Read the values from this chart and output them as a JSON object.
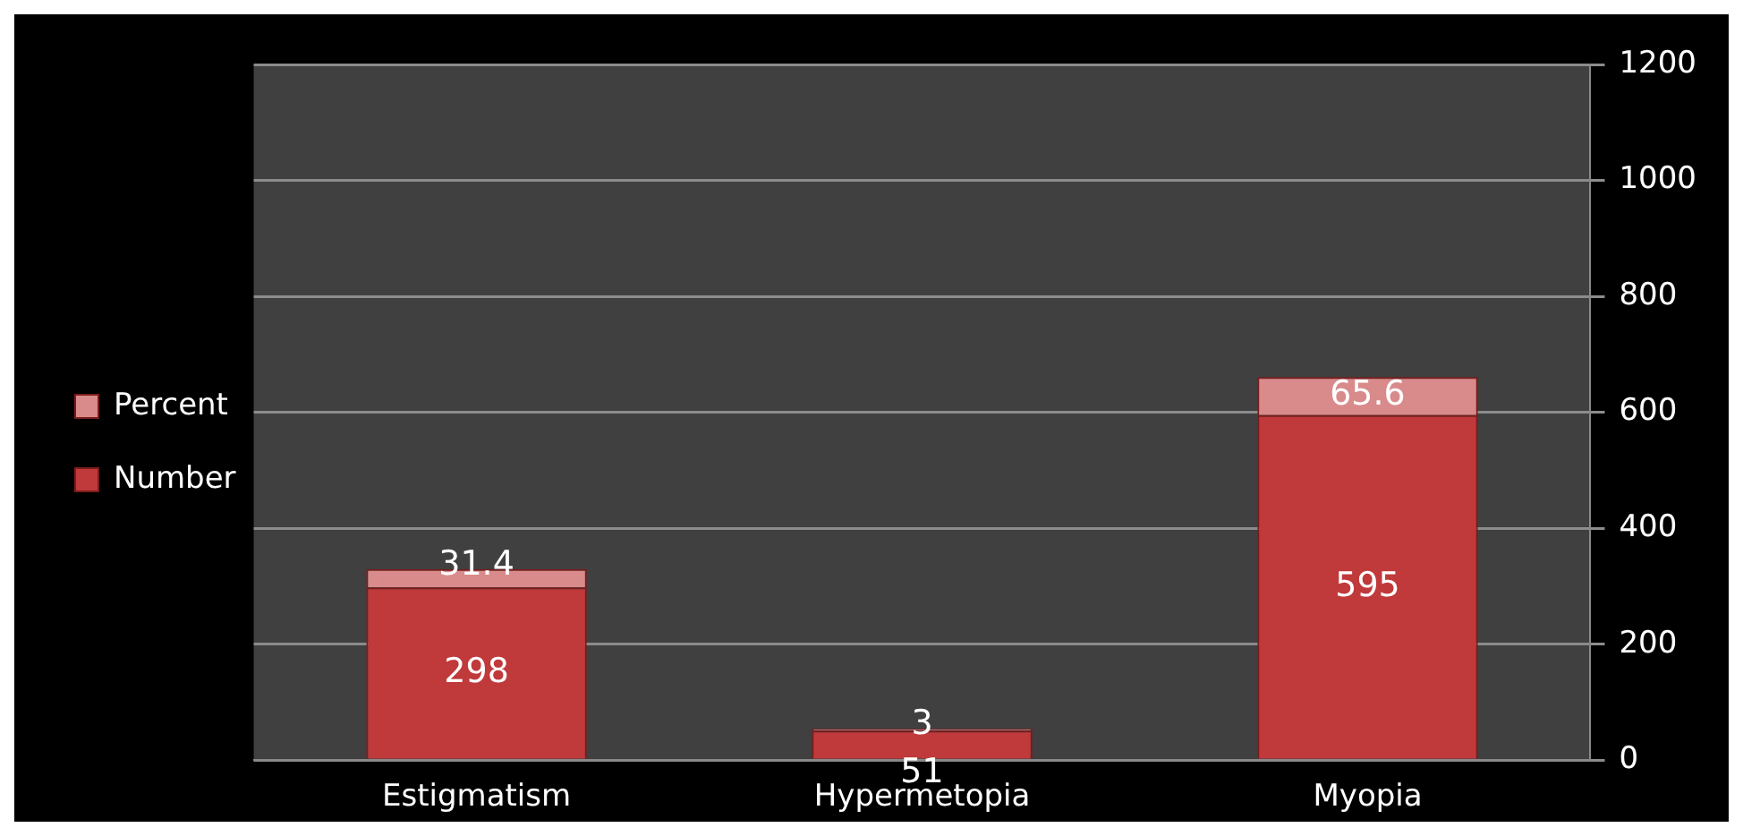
{
  "chart_data": {
    "type": "bar",
    "stacked": true,
    "categories": [
      "Estigmatism",
      "Hypermetopia",
      "Myopia"
    ],
    "series": [
      {
        "name": "Number",
        "color": "#c0393b",
        "values": [
          298,
          51,
          595
        ],
        "value_labels": [
          "298",
          "51",
          "595"
        ]
      },
      {
        "name": "Percent",
        "color": "#d98a8b",
        "values": [
          31.4,
          3,
          65.6
        ],
        "value_labels": [
          "31.4",
          "3",
          "65.6"
        ]
      }
    ],
    "ylim": [
      0,
      1200
    ],
    "yticks": [
      0,
      200,
      400,
      600,
      800,
      1000,
      1200
    ],
    "grid": "y",
    "legend": "left"
  }
}
